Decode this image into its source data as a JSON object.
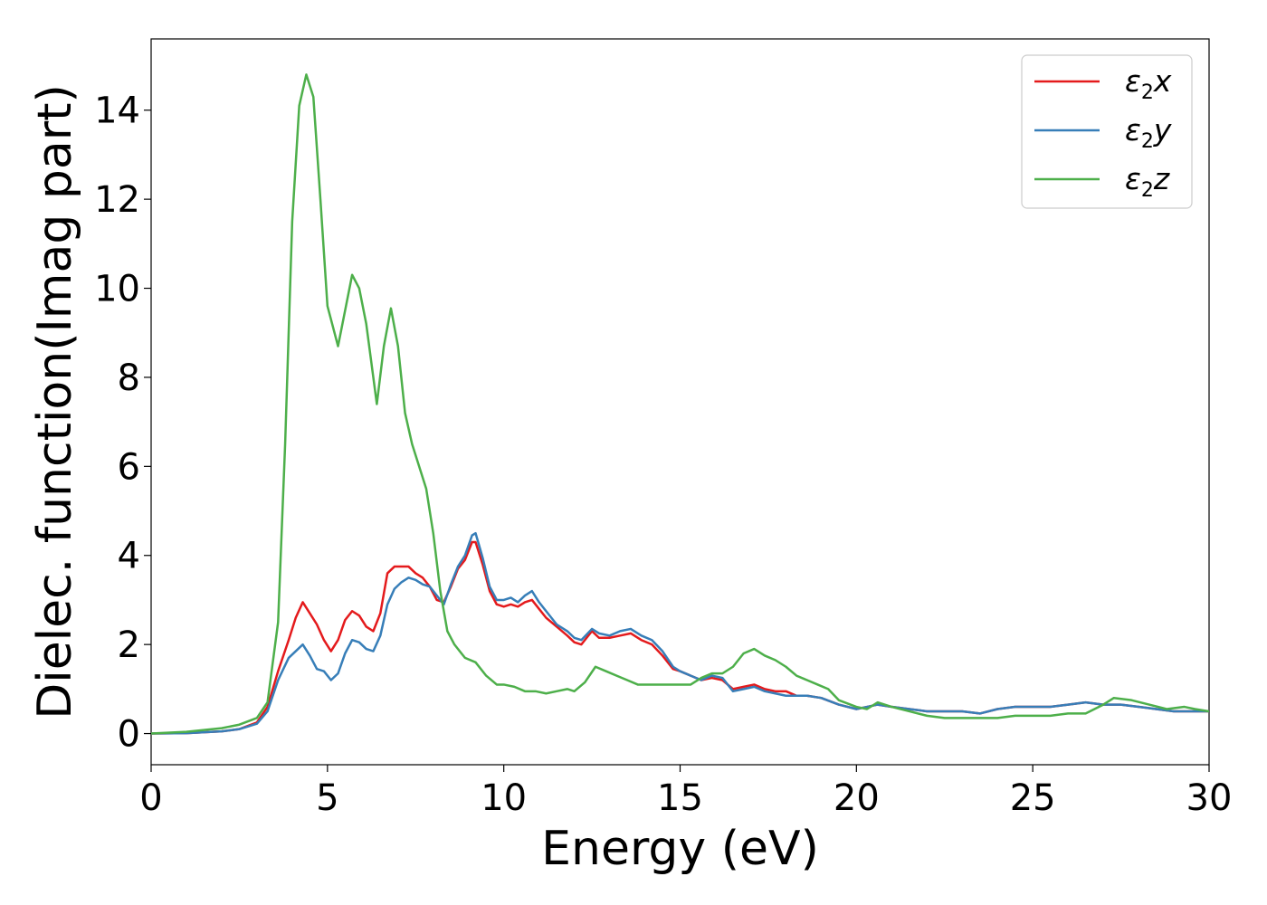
{
  "chart_data": {
    "type": "line",
    "xlabel": "Energy (eV)",
    "ylabel": "Dielec. function(Imag part)",
    "xlim": [
      0,
      30
    ],
    "ylim": [
      -0.7,
      15.6
    ],
    "xticks": [
      0,
      5,
      10,
      15,
      20,
      25,
      30
    ],
    "yticks": [
      0,
      2,
      4,
      6,
      8,
      10,
      12,
      14
    ],
    "grid": false,
    "legend_position": "top-right",
    "series": [
      {
        "name": "ε2x",
        "legend": {
          "base": "ε",
          "sub": "2",
          "axis": "x"
        },
        "color": "#e41a1c",
        "x": [
          0,
          1,
          2,
          2.5,
          3,
          3.3,
          3.6,
          3.9,
          4.1,
          4.3,
          4.5,
          4.7,
          4.9,
          5.1,
          5.3,
          5.5,
          5.7,
          5.9,
          6.1,
          6.3,
          6.5,
          6.7,
          6.9,
          7.1,
          7.3,
          7.5,
          7.7,
          7.9,
          8.1,
          8.3,
          8.5,
          8.7,
          8.9,
          9.1,
          9.2,
          9.4,
          9.6,
          9.8,
          10.0,
          10.2,
          10.4,
          10.6,
          10.8,
          11.0,
          11.2,
          11.5,
          11.8,
          12.0,
          12.2,
          12.5,
          12.7,
          13.0,
          13.3,
          13.6,
          13.9,
          14.2,
          14.5,
          14.8,
          15.0,
          15.3,
          15.6,
          15.9,
          16.2,
          16.5,
          16.8,
          17.1,
          17.4,
          17.7,
          18.0,
          18.3,
          18.6,
          19.0,
          19.5,
          20.0,
          20.3,
          20.6,
          21.0,
          21.5,
          22.0,
          22.5,
          23.0,
          23.5,
          24.0,
          24.5,
          25.0,
          25.5,
          26.0,
          26.5,
          27.0,
          27.5,
          28.0,
          28.5,
          29.0,
          29.5,
          30.0
        ],
        "y": [
          0,
          0.01,
          0.05,
          0.1,
          0.25,
          0.6,
          1.4,
          2.1,
          2.6,
          2.95,
          2.7,
          2.45,
          2.1,
          1.85,
          2.1,
          2.55,
          2.75,
          2.65,
          2.4,
          2.3,
          2.7,
          3.6,
          3.75,
          3.75,
          3.75,
          3.6,
          3.5,
          3.3,
          3.0,
          2.95,
          3.3,
          3.7,
          3.9,
          4.3,
          4.3,
          3.8,
          3.2,
          2.9,
          2.85,
          2.9,
          2.85,
          2.95,
          3.0,
          2.8,
          2.6,
          2.4,
          2.2,
          2.05,
          2.0,
          2.3,
          2.15,
          2.15,
          2.2,
          2.25,
          2.1,
          2.0,
          1.75,
          1.45,
          1.4,
          1.3,
          1.2,
          1.25,
          1.2,
          1.0,
          1.05,
          1.1,
          1.0,
          0.95,
          0.95,
          0.85,
          0.85,
          0.8,
          0.65,
          0.55,
          0.6,
          0.65,
          0.6,
          0.55,
          0.5,
          0.5,
          0.5,
          0.45,
          0.55,
          0.6,
          0.6,
          0.6,
          0.65,
          0.7,
          0.65,
          0.65,
          0.6,
          0.55,
          0.5,
          0.5,
          0.5
        ]
      },
      {
        "name": "ε2y",
        "legend": {
          "base": "ε",
          "sub": "2",
          "axis": "y"
        },
        "color": "#377eb8",
        "x": [
          0,
          1,
          2,
          2.5,
          3,
          3.3,
          3.6,
          3.9,
          4.1,
          4.3,
          4.5,
          4.7,
          4.9,
          5.1,
          5.3,
          5.5,
          5.7,
          5.9,
          6.1,
          6.3,
          6.5,
          6.7,
          6.9,
          7.1,
          7.3,
          7.5,
          7.7,
          7.9,
          8.1,
          8.3,
          8.5,
          8.7,
          8.9,
          9.1,
          9.2,
          9.4,
          9.6,
          9.8,
          10.0,
          10.2,
          10.4,
          10.6,
          10.8,
          11.0,
          11.2,
          11.5,
          11.8,
          12.0,
          12.2,
          12.5,
          12.7,
          13.0,
          13.3,
          13.6,
          13.9,
          14.2,
          14.5,
          14.8,
          15.0,
          15.3,
          15.6,
          15.9,
          16.2,
          16.5,
          16.8,
          17.1,
          17.4,
          17.7,
          18.0,
          18.3,
          18.6,
          19.0,
          19.5,
          20.0,
          20.3,
          20.6,
          21.0,
          21.5,
          22.0,
          22.5,
          23.0,
          23.5,
          24.0,
          24.5,
          25.0,
          25.5,
          26.0,
          26.5,
          27.0,
          27.5,
          28.0,
          28.5,
          29.0,
          29.5,
          30.0
        ],
        "y": [
          0,
          0.01,
          0.05,
          0.1,
          0.22,
          0.5,
          1.2,
          1.7,
          1.85,
          2.0,
          1.75,
          1.45,
          1.4,
          1.2,
          1.35,
          1.8,
          2.1,
          2.05,
          1.9,
          1.85,
          2.2,
          2.9,
          3.25,
          3.4,
          3.5,
          3.45,
          3.35,
          3.3,
          3.1,
          2.9,
          3.35,
          3.75,
          4.0,
          4.45,
          4.5,
          3.95,
          3.3,
          3.0,
          3.0,
          3.05,
          2.95,
          3.1,
          3.2,
          2.95,
          2.75,
          2.45,
          2.3,
          2.15,
          2.1,
          2.35,
          2.25,
          2.2,
          2.3,
          2.35,
          2.2,
          2.1,
          1.85,
          1.5,
          1.4,
          1.3,
          1.2,
          1.3,
          1.25,
          0.95,
          1.0,
          1.05,
          0.95,
          0.9,
          0.85,
          0.85,
          0.85,
          0.8,
          0.65,
          0.55,
          0.6,
          0.65,
          0.6,
          0.55,
          0.5,
          0.5,
          0.5,
          0.45,
          0.55,
          0.6,
          0.6,
          0.6,
          0.65,
          0.7,
          0.65,
          0.65,
          0.6,
          0.55,
          0.5,
          0.5,
          0.5
        ]
      },
      {
        "name": "ε2z",
        "legend": {
          "base": "ε",
          "sub": "2",
          "axis": "z"
        },
        "color": "#4daf4a",
        "x": [
          0,
          1,
          2,
          2.5,
          3,
          3.3,
          3.6,
          3.8,
          4.0,
          4.2,
          4.4,
          4.6,
          4.8,
          5.0,
          5.3,
          5.5,
          5.7,
          5.9,
          6.1,
          6.4,
          6.6,
          6.8,
          7.0,
          7.2,
          7.4,
          7.6,
          7.8,
          8.0,
          8.2,
          8.4,
          8.6,
          8.9,
          9.2,
          9.5,
          9.8,
          10.0,
          10.3,
          10.6,
          10.9,
          11.2,
          11.5,
          11.8,
          12.0,
          12.3,
          12.6,
          12.9,
          13.2,
          13.5,
          13.8,
          14.1,
          14.4,
          14.7,
          15.0,
          15.3,
          15.6,
          15.9,
          16.2,
          16.5,
          16.8,
          17.1,
          17.4,
          17.7,
          18.0,
          18.3,
          18.6,
          18.9,
          19.2,
          19.5,
          20.0,
          20.3,
          20.6,
          21.0,
          21.5,
          22.0,
          22.5,
          23.0,
          23.5,
          24.0,
          24.5,
          25.0,
          25.5,
          26.0,
          26.5,
          27.0,
          27.3,
          27.8,
          28.3,
          28.8,
          29.3,
          29.6,
          30.0
        ],
        "y": [
          0,
          0.04,
          0.12,
          0.2,
          0.35,
          0.7,
          2.5,
          6.5,
          11.5,
          14.1,
          14.8,
          14.3,
          12.0,
          9.6,
          8.7,
          9.5,
          10.3,
          10.0,
          9.2,
          7.4,
          8.7,
          9.55,
          8.7,
          7.2,
          6.5,
          6.0,
          5.5,
          4.5,
          3.2,
          2.3,
          2.0,
          1.7,
          1.6,
          1.3,
          1.1,
          1.1,
          1.05,
          0.95,
          0.95,
          0.9,
          0.95,
          1.0,
          0.95,
          1.15,
          1.5,
          1.4,
          1.3,
          1.2,
          1.1,
          1.1,
          1.1,
          1.1,
          1.1,
          1.1,
          1.25,
          1.35,
          1.35,
          1.5,
          1.8,
          1.9,
          1.75,
          1.65,
          1.5,
          1.3,
          1.2,
          1.1,
          1.0,
          0.75,
          0.6,
          0.55,
          0.7,
          0.6,
          0.5,
          0.4,
          0.35,
          0.35,
          0.35,
          0.35,
          0.4,
          0.4,
          0.4,
          0.45,
          0.45,
          0.65,
          0.8,
          0.75,
          0.65,
          0.55,
          0.6,
          0.55,
          0.5
        ]
      }
    ]
  }
}
